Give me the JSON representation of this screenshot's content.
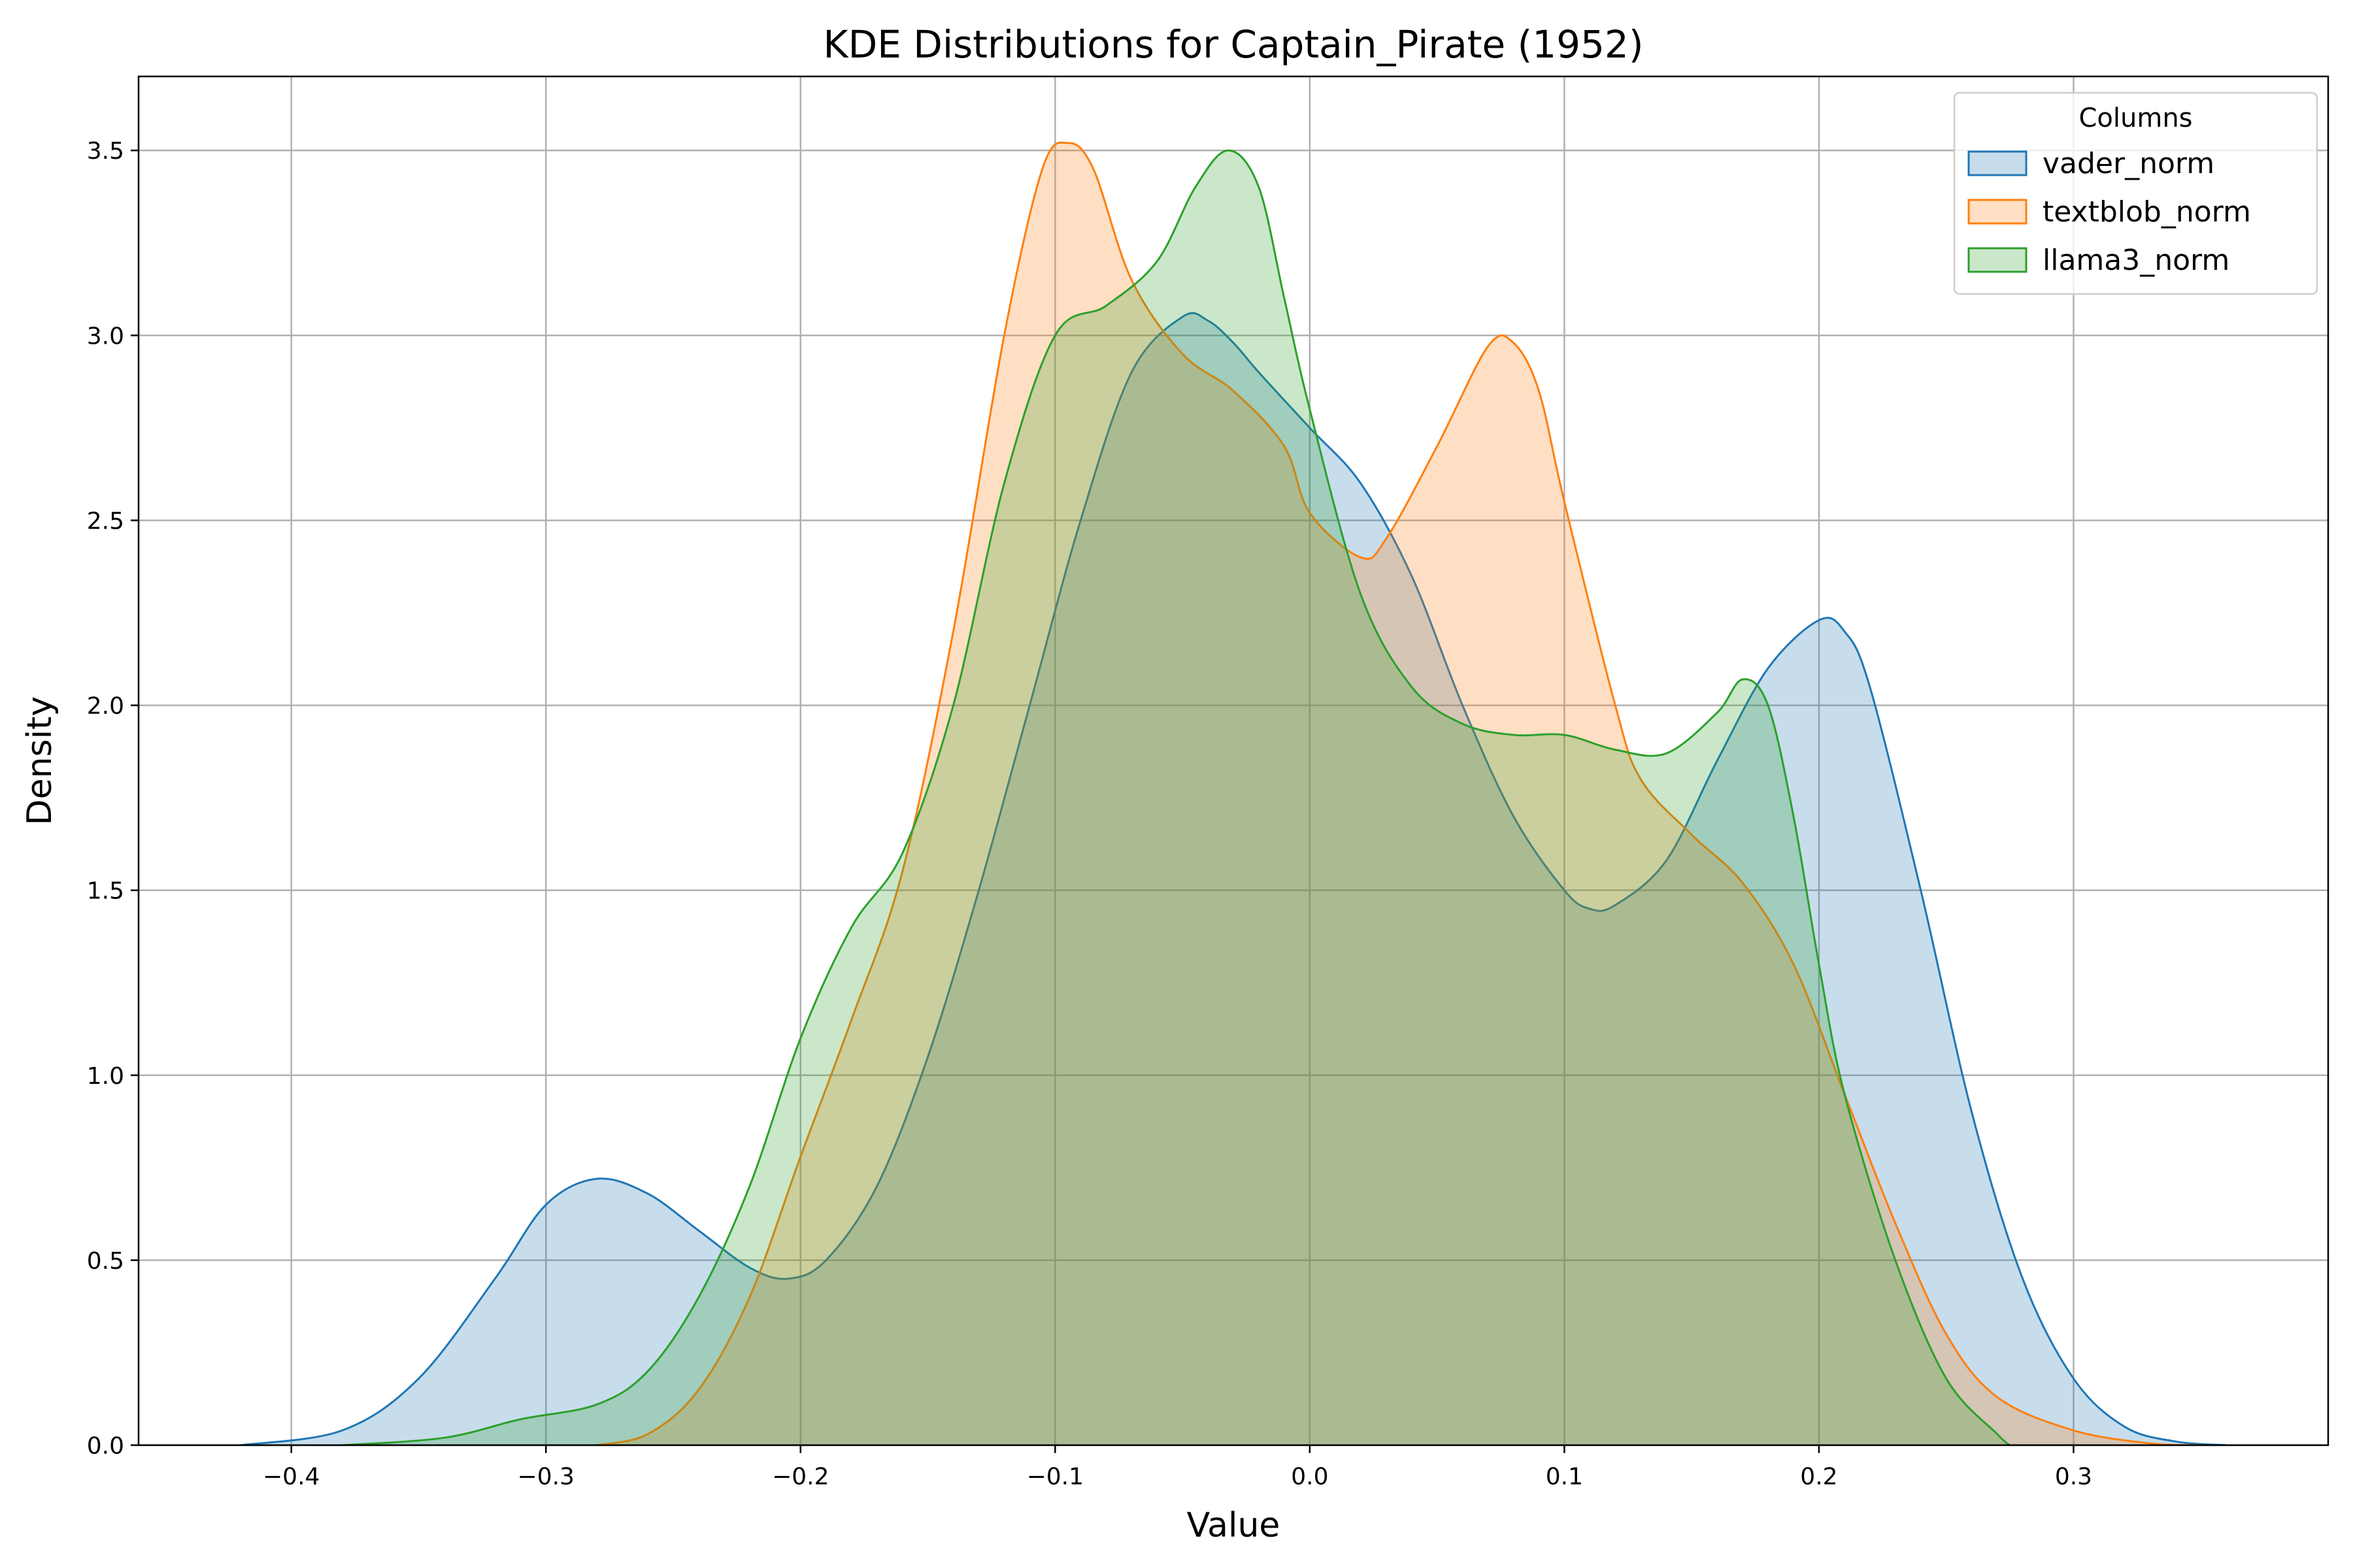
{
  "chart_data": {
    "type": "area",
    "title": "KDE Distributions for Captain_Pirate (1952)",
    "xlabel": "Value",
    "ylabel": "Density",
    "xlim": [
      -0.46,
      0.4
    ],
    "ylim": [
      0,
      3.7
    ],
    "grid": true,
    "x_ticks": [
      -0.4,
      -0.3,
      -0.2,
      -0.1,
      0.0,
      0.1,
      0.2,
      0.3
    ],
    "x_tick_labels": [
      "−0.4",
      "−0.3",
      "−0.2",
      "−0.1",
      "0.0",
      "0.1",
      "0.2",
      "0.3"
    ],
    "y_ticks": [
      0,
      0.5,
      1.0,
      1.5,
      2.0,
      2.5,
      3.0,
      3.5
    ],
    "y_tick_labels": [
      "0.0",
      "0.5",
      "1.0",
      "1.5",
      "2.0",
      "2.5",
      "3.0",
      "3.5"
    ],
    "legend": {
      "title": "Columns",
      "placement": "top-right",
      "entries": [
        "vader_norm",
        "textblob_norm",
        "llama3_norm"
      ]
    },
    "series": [
      {
        "name": "vader_norm",
        "color": "#1f77b4",
        "fill_opacity": 0.25,
        "points": [
          [
            -0.42,
            0.0
          ],
          [
            -0.38,
            0.04
          ],
          [
            -0.35,
            0.18
          ],
          [
            -0.32,
            0.45
          ],
          [
            -0.3,
            0.65
          ],
          [
            -0.28,
            0.72
          ],
          [
            -0.26,
            0.68
          ],
          [
            -0.24,
            0.58
          ],
          [
            -0.22,
            0.48
          ],
          [
            -0.205,
            0.45
          ],
          [
            -0.19,
            0.5
          ],
          [
            -0.17,
            0.7
          ],
          [
            -0.15,
            1.05
          ],
          [
            -0.13,
            1.5
          ],
          [
            -0.11,
            2.0
          ],
          [
            -0.09,
            2.5
          ],
          [
            -0.07,
            2.9
          ],
          [
            -0.05,
            3.05
          ],
          [
            -0.04,
            3.04
          ],
          [
            -0.03,
            2.98
          ],
          [
            -0.02,
            2.9
          ],
          [
            0.0,
            2.75
          ],
          [
            0.02,
            2.6
          ],
          [
            0.04,
            2.35
          ],
          [
            0.06,
            2.0
          ],
          [
            0.08,
            1.7
          ],
          [
            0.1,
            1.5
          ],
          [
            0.11,
            1.45
          ],
          [
            0.12,
            1.46
          ],
          [
            0.14,
            1.58
          ],
          [
            0.16,
            1.85
          ],
          [
            0.18,
            2.1
          ],
          [
            0.2,
            2.23
          ],
          [
            0.21,
            2.2
          ],
          [
            0.22,
            2.05
          ],
          [
            0.24,
            1.5
          ],
          [
            0.26,
            0.9
          ],
          [
            0.28,
            0.45
          ],
          [
            0.3,
            0.18
          ],
          [
            0.32,
            0.05
          ],
          [
            0.34,
            0.01
          ],
          [
            0.36,
            0.0
          ]
        ]
      },
      {
        "name": "textblob_norm",
        "color": "#ff7f0e",
        "fill_opacity": 0.25,
        "points": [
          [
            -0.28,
            0.0
          ],
          [
            -0.26,
            0.03
          ],
          [
            -0.24,
            0.15
          ],
          [
            -0.22,
            0.4
          ],
          [
            -0.2,
            0.78
          ],
          [
            -0.18,
            1.15
          ],
          [
            -0.16,
            1.55
          ],
          [
            -0.14,
            2.2
          ],
          [
            -0.12,
            3.0
          ],
          [
            -0.105,
            3.45
          ],
          [
            -0.095,
            3.52
          ],
          [
            -0.085,
            3.45
          ],
          [
            -0.07,
            3.15
          ],
          [
            -0.05,
            2.95
          ],
          [
            -0.03,
            2.85
          ],
          [
            -0.01,
            2.7
          ],
          [
            0.0,
            2.52
          ],
          [
            0.02,
            2.4
          ],
          [
            0.03,
            2.45
          ],
          [
            0.05,
            2.7
          ],
          [
            0.07,
            2.97
          ],
          [
            0.08,
            2.98
          ],
          [
            0.09,
            2.85
          ],
          [
            0.1,
            2.55
          ],
          [
            0.12,
            2.0
          ],
          [
            0.13,
            1.8
          ],
          [
            0.15,
            1.65
          ],
          [
            0.17,
            1.52
          ],
          [
            0.19,
            1.3
          ],
          [
            0.21,
            0.95
          ],
          [
            0.23,
            0.6
          ],
          [
            0.25,
            0.3
          ],
          [
            0.27,
            0.13
          ],
          [
            0.3,
            0.04
          ],
          [
            0.33,
            0.005
          ],
          [
            0.35,
            0.0
          ]
        ]
      },
      {
        "name": "llama3_norm",
        "color": "#2ca02c",
        "fill_opacity": 0.25,
        "points": [
          [
            -0.38,
            0.0
          ],
          [
            -0.34,
            0.02
          ],
          [
            -0.31,
            0.07
          ],
          [
            -0.28,
            0.11
          ],
          [
            -0.26,
            0.2
          ],
          [
            -0.24,
            0.4
          ],
          [
            -0.22,
            0.7
          ],
          [
            -0.2,
            1.1
          ],
          [
            -0.18,
            1.4
          ],
          [
            -0.16,
            1.6
          ],
          [
            -0.14,
            2.0
          ],
          [
            -0.12,
            2.6
          ],
          [
            -0.1,
            3.0
          ],
          [
            -0.08,
            3.08
          ],
          [
            -0.06,
            3.2
          ],
          [
            -0.045,
            3.4
          ],
          [
            -0.032,
            3.5
          ],
          [
            -0.02,
            3.4
          ],
          [
            -0.01,
            3.1
          ],
          [
            0.0,
            2.8
          ],
          [
            0.02,
            2.3
          ],
          [
            0.04,
            2.05
          ],
          [
            0.06,
            1.95
          ],
          [
            0.08,
            1.92
          ],
          [
            0.1,
            1.92
          ],
          [
            0.12,
            1.88
          ],
          [
            0.14,
            1.87
          ],
          [
            0.16,
            1.98
          ],
          [
            0.17,
            2.07
          ],
          [
            0.18,
            2.0
          ],
          [
            0.19,
            1.7
          ],
          [
            0.2,
            1.3
          ],
          [
            0.21,
            0.95
          ],
          [
            0.23,
            0.5
          ],
          [
            0.25,
            0.18
          ],
          [
            0.27,
            0.03
          ],
          [
            0.275,
            0.0
          ]
        ]
      }
    ]
  }
}
